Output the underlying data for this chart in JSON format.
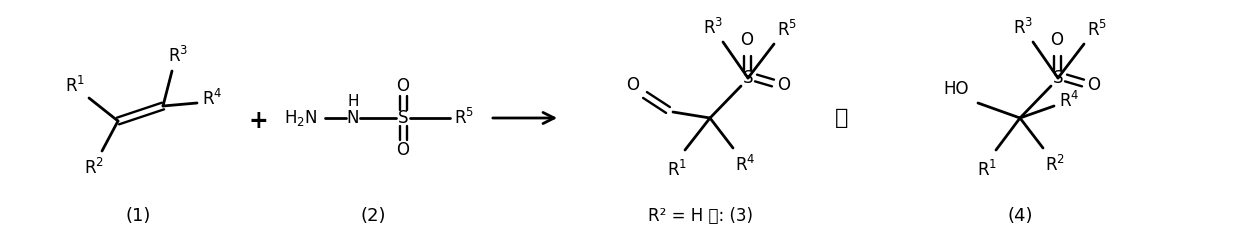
{
  "background": "#ffffff",
  "figsize": [
    12.38,
    2.36
  ],
  "dpi": 100,
  "label1": "(1)",
  "label2": "(2)",
  "label3": "R² = H 时: (3)",
  "label4": "(4)",
  "or_text": "或",
  "plus_text": "+"
}
